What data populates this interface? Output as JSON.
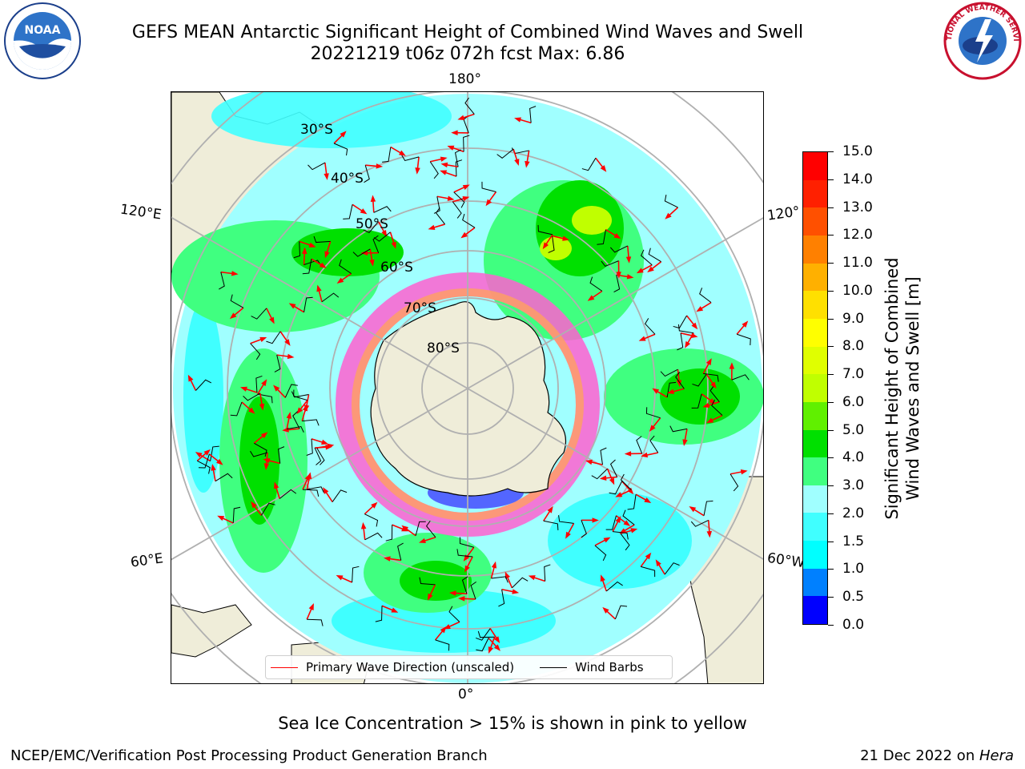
{
  "title": {
    "line1": "GEFS MEAN Antarctic Significant Height of Combined Wind Waves and Swell",
    "line2": "20221219 t06z 072h fcst   Max: 6.86"
  },
  "map": {
    "projection": "south polar stereographic",
    "lat_labels": [
      "30°S",
      "40°S",
      "50°S",
      "60°S",
      "70°S",
      "80°S"
    ],
    "lon_labels": {
      "top": "180°",
      "bottom": "0°",
      "left_upper": "120°E",
      "left_lower": "60°E",
      "right_upper": "120°",
      "right_lower": "60°W"
    }
  },
  "legend": {
    "wave_label": "Primary Wave Direction (unscaled)",
    "wave_color": "#ff0000",
    "barb_label": "Wind Barbs",
    "barb_color": "#000000"
  },
  "colorbar": {
    "label_line1": "Significant Height of Combined",
    "label_line2": "Wind Waves and Swell [m]",
    "ticks": [
      "0.0",
      "0.5",
      "1.0",
      "1.5",
      "2.0",
      "3.0",
      "4.0",
      "5.0",
      "6.0",
      "7.0",
      "8.0",
      "9.0",
      "10.0",
      "11.0",
      "12.0",
      "13.0",
      "14.0",
      "15.0"
    ],
    "colors": [
      "#0000ff",
      "#0080ff",
      "#00ffff",
      "#40ffff",
      "#a0ffff",
      "#40ff80",
      "#00e000",
      "#60f000",
      "#c0ff00",
      "#e0ff00",
      "#ffff00",
      "#ffe000",
      "#ffb000",
      "#ff8000",
      "#ff5000",
      "#ff2000",
      "#ff0000"
    ]
  },
  "ice_note": "Sea Ice Concentration > 15% is shown in pink to yellow",
  "footer": {
    "left": "NCEP/EMC/Verification Post Processing Product Generation Branch",
    "right_date": "21 Dec 2022 on ",
    "right_host": "Hera"
  },
  "logos": {
    "left": "NOAA",
    "right": "NATIONAL WEATHER SERVICE"
  }
}
